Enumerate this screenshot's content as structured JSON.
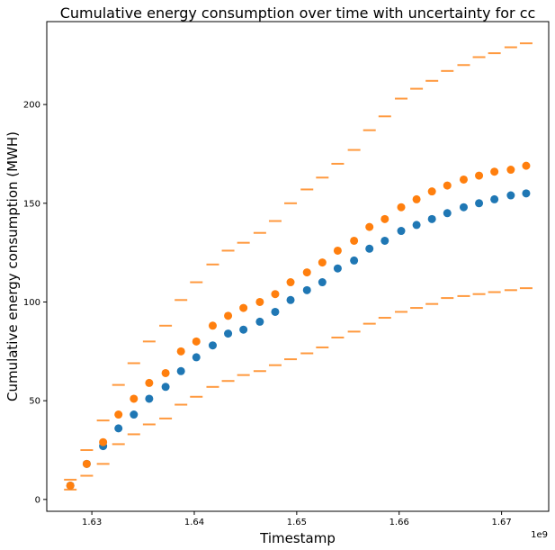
{
  "chart_data": {
    "type": "scatter",
    "title": "Cumulative energy consumption over time with uncertainty for cc",
    "xlabel": "Timestamp",
    "ylabel": "Cumulative energy consumption (MWH)",
    "x_offset_label": "1e9",
    "xlim": [
      1.6256,
      1.6746
    ],
    "ylim": [
      -6,
      242
    ],
    "x_ticks": [
      1.63,
      1.64,
      1.65,
      1.66,
      1.67
    ],
    "x_tick_labels": [
      "1.63",
      "1.64",
      "1.65",
      "1.66",
      "1.67"
    ],
    "y_ticks": [
      0,
      50,
      100,
      150,
      200
    ],
    "y_tick_labels": [
      "0",
      "50",
      "100",
      "150",
      "200"
    ],
    "grid": false,
    "legend": null,
    "x": [
      1.6279,
      1.6295,
      1.6311,
      1.6326,
      1.6341,
      1.6356,
      1.6372,
      1.6387,
      1.6402,
      1.6418,
      1.6433,
      1.6448,
      1.6464,
      1.6479,
      1.6494,
      1.651,
      1.6525,
      1.654,
      1.6556,
      1.6571,
      1.6586,
      1.6602,
      1.6617,
      1.6632,
      1.6647,
      1.6663,
      1.6678,
      1.6693,
      1.6709,
      1.6724
    ],
    "series": [
      {
        "marker": "dot",
        "color": "#1f77b4",
        "values": [
          7,
          18,
          27,
          36,
          43,
          51,
          57,
          65,
          72,
          78,
          84,
          86,
          90,
          95,
          101,
          106,
          110,
          117,
          121,
          127,
          131,
          136,
          139,
          142,
          145,
          148,
          150,
          152,
          154,
          155
        ]
      },
      {
        "marker": "dot",
        "color": "#ff7f0e",
        "values": [
          7,
          18,
          29,
          43,
          51,
          59,
          64,
          75,
          80,
          88,
          93,
          97,
          100,
          104,
          110,
          115,
          120,
          126,
          131,
          138,
          142,
          148,
          152,
          156,
          159,
          162,
          164,
          166,
          167,
          169
        ]
      },
      {
        "marker": "hline",
        "color": "#ff7f0e",
        "opacity": 0.8,
        "values": [
          10,
          25,
          40,
          58,
          69,
          80,
          88,
          101,
          110,
          119,
          126,
          130,
          135,
          141,
          150,
          157,
          163,
          170,
          177,
          187,
          194,
          203,
          208,
          212,
          217,
          220,
          224,
          226,
          229,
          231
        ]
      },
      {
        "marker": "hline",
        "color": "#ff7f0e",
        "opacity": 0.8,
        "values": [
          5,
          12,
          18,
          28,
          33,
          38,
          41,
          48,
          52,
          57,
          60,
          63,
          65,
          68,
          71,
          74,
          77,
          82,
          85,
          89,
          92,
          95,
          97,
          99,
          102,
          103,
          104,
          105,
          106,
          107
        ]
      }
    ]
  }
}
